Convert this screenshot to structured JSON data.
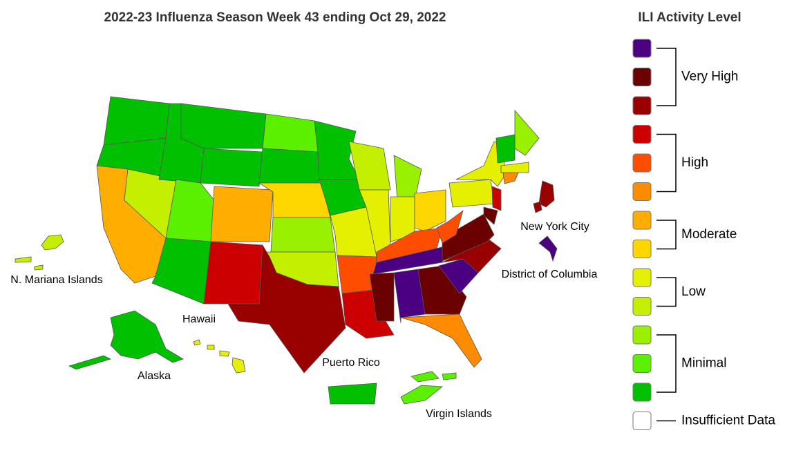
{
  "title": "2022-23 Influenza Season Week 43 ending Oct 29, 2022",
  "legend": {
    "title": "ILI Activity Level",
    "groups": [
      {
        "label": "Very High",
        "colors": [
          "#4b0082",
          "#6b0000",
          "#990000"
        ]
      },
      {
        "label": "High",
        "colors": [
          "#cc0000",
          "#ff4d00",
          "#ff8c00"
        ]
      },
      {
        "label": "Moderate",
        "colors": [
          "#ffae00",
          "#ffd700"
        ]
      },
      {
        "label": "Low",
        "colors": [
          "#e5f000",
          "#c4f000"
        ]
      },
      {
        "label": "Minimal",
        "colors": [
          "#99f000",
          "#5af000",
          "#00c000"
        ]
      },
      {
        "label": "Insufficient Data",
        "colors": [
          "#ffffff"
        ]
      }
    ]
  },
  "map_labels": [
    "New York City",
    "District of Columbia",
    "N. Mariana Islands",
    "Hawaii",
    "Alaska",
    "Puerto Rico",
    "Virgin Islands"
  ]
}
